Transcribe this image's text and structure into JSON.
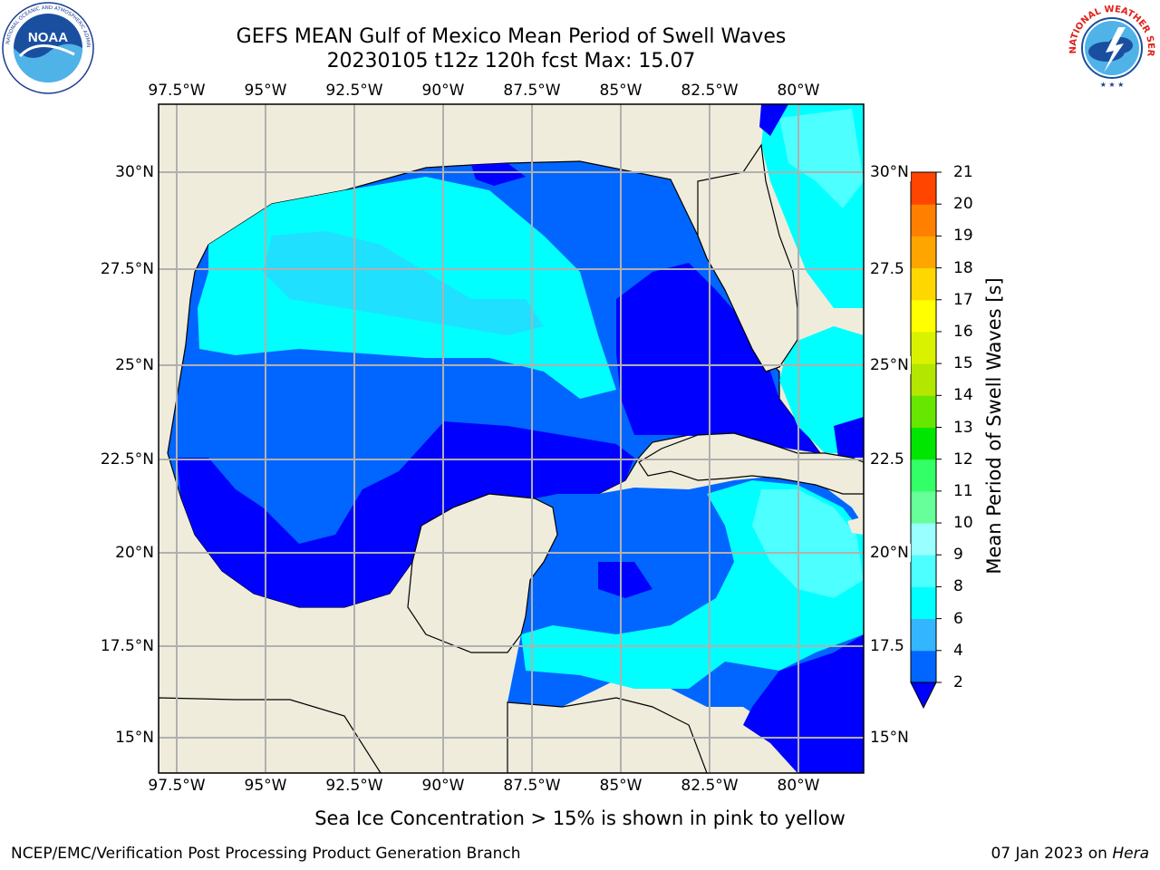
{
  "header": {
    "title_line1": "GEFS MEAN Gulf of Mexico Mean Period of Swell Waves",
    "title_line2": "20230105 t12z 120h fcst   Max: 15.07"
  },
  "logos": {
    "left": "NOAA",
    "left_ring_text": "NATIONAL OCEANIC AND ATMOSPHERIC ADMINISTRATION · U.S. DEPARTMENT OF COMMERCE",
    "right_ring_text": "NATIONAL WEATHER SERVICE"
  },
  "map": {
    "lon_ticks": [
      "97.5°W",
      "95°W",
      "92.5°W",
      "90°W",
      "87.5°W",
      "85°W",
      "82.5°W",
      "80°W"
    ],
    "lat_ticks_left": [
      "30°N",
      "27.5°N",
      "25°N",
      "22.5°N",
      "20°N",
      "17.5°N",
      "15°N"
    ],
    "lat_ticks_right": [
      "30°N",
      "27.5",
      "25°N",
      "22.5",
      "20°N",
      "17.5",
      "15°N"
    ],
    "land_color": "#efecdc",
    "grid_color": "#b0b0b0"
  },
  "colorbar": {
    "title": "Mean Period of Swell Waves [s]",
    "ticks": [
      "2",
      "4",
      "6",
      "8",
      "9",
      "10",
      "11",
      "12",
      "13",
      "14",
      "15",
      "16",
      "17",
      "18",
      "19",
      "20",
      "21"
    ],
    "colors": [
      "#0000ff",
      "#0066ff",
      "#33b5ff",
      "#00ffff",
      "#4dffff",
      "#99ffff",
      "#66ff99",
      "#33ff66",
      "#00e600",
      "#66e600",
      "#b3e600",
      "#d9f200",
      "#ffff00",
      "#ffd700",
      "#ffa500",
      "#ff7f00",
      "#ff4500",
      "#ff0000"
    ]
  },
  "note": "Sea Ice Concentration > 15% is shown in pink to yellow",
  "footer": {
    "left": "NCEP/EMC/Verification Post Processing Product Generation Branch",
    "right_date": "07 Jan 2023 on ",
    "right_host": "Hera"
  }
}
